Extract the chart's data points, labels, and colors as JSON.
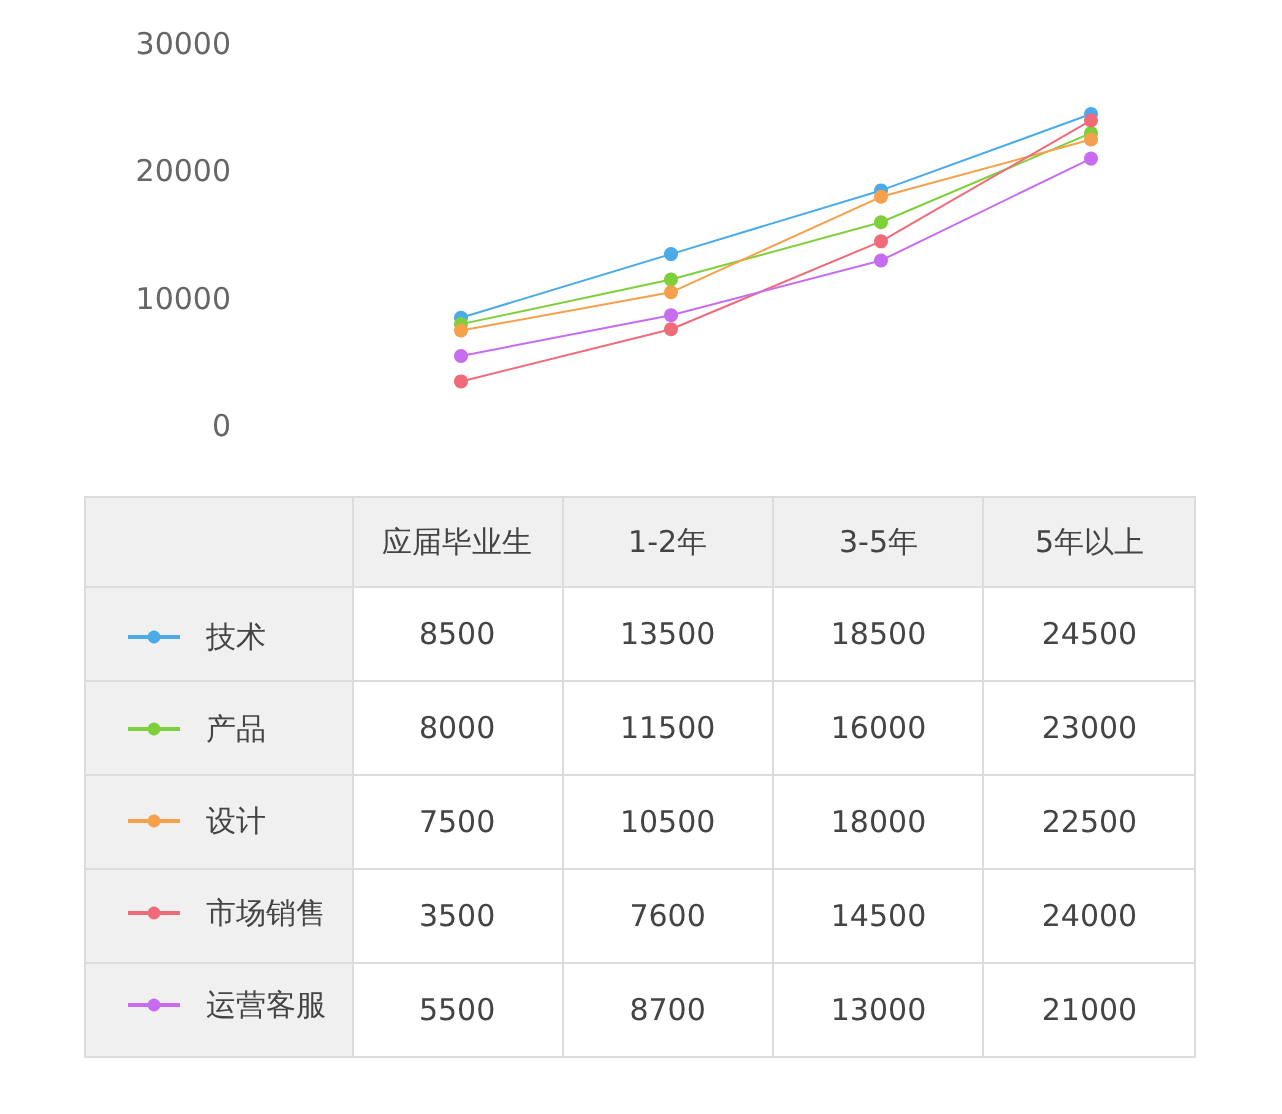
{
  "chart_data": {
    "type": "line",
    "categories": [
      "应届毕业生",
      "1-2年",
      "3-5年",
      "5年以上"
    ],
    "series": [
      {
        "name": "技术",
        "color": "#4aabe8",
        "values": [
          8500,
          13500,
          18500,
          24500
        ]
      },
      {
        "name": "产品",
        "color": "#7ed03b",
        "values": [
          8000,
          11500,
          16000,
          23000
        ]
      },
      {
        "name": "设计",
        "color": "#f5a04a",
        "values": [
          7500,
          10500,
          18000,
          22500
        ]
      },
      {
        "name": "市场销售",
        "color": "#ef6b7a",
        "values": [
          3500,
          7600,
          14500,
          24000
        ]
      },
      {
        "name": "运营客服",
        "color": "#c76bf0",
        "values": [
          5500,
          8700,
          13000,
          21000
        ]
      }
    ],
    "ylim": [
      0,
      30000
    ],
    "yticks": [
      0,
      10000,
      20000,
      30000
    ],
    "grid": false,
    "legend": "bottom",
    "marker": "circle",
    "line_style": "solid",
    "data_labels": true,
    "tick_labels": "y"
  }
}
